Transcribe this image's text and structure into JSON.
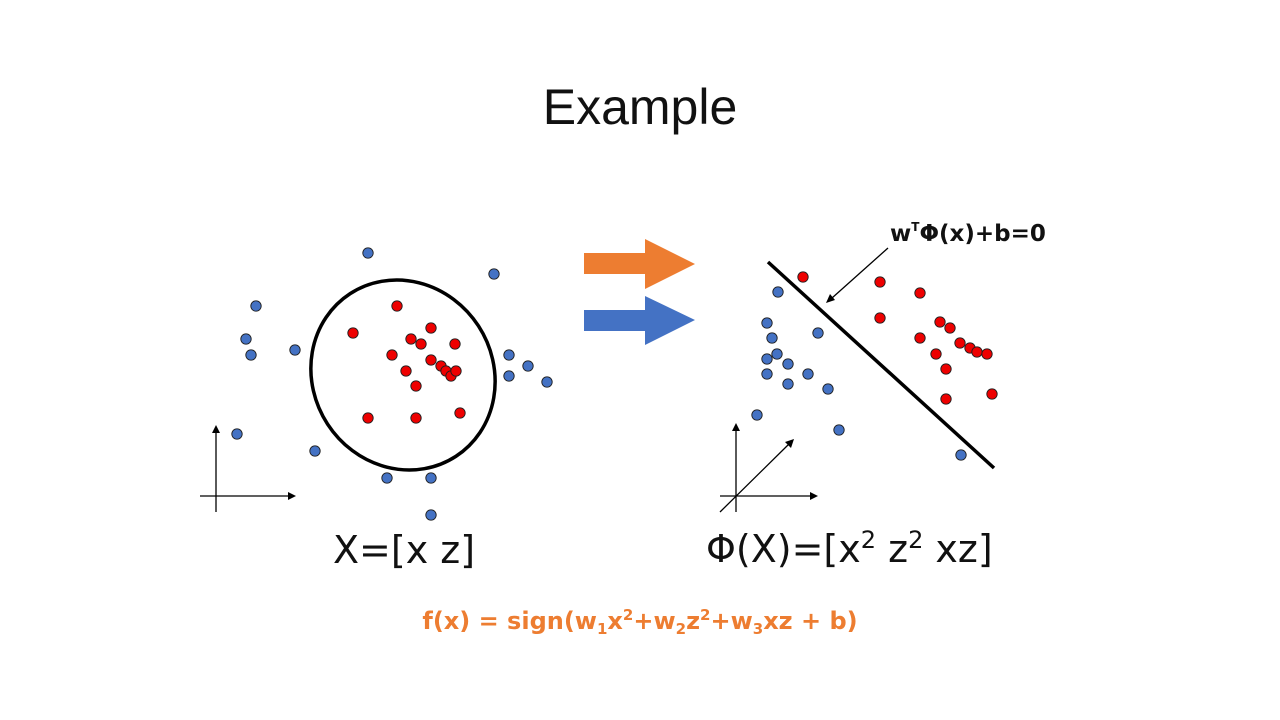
{
  "slide": {
    "title": "Example"
  },
  "left_panel": {
    "label_prefix": "X=[x z]"
  },
  "right_panel": {
    "label_base": "Φ(X)=[x",
    "label_exp1": "2",
    "label_mid": " z",
    "label_exp2": "2",
    "label_end": " xz]",
    "annotation_w": "w",
    "annotation_sup": "T",
    "annotation_rest": "Φ(x)+b=0"
  },
  "formula": {
    "p1": "f(x) = sign(w",
    "s1": "1",
    "p2": "x",
    "e1": "2",
    "p3": "+w",
    "s2": "2",
    "p4": "z",
    "e2": "2",
    "p5": "+w",
    "s3": "3",
    "p6": "xz + b)"
  },
  "colors": {
    "class_red": "#EE0000",
    "class_blue": "#4472C4",
    "arrow_orange": "#ED7D31",
    "arrow_blue": "#4472C4",
    "formula": "#ED7D31"
  }
}
